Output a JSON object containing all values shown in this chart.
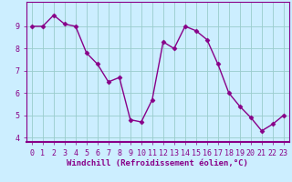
{
  "x": [
    0,
    1,
    2,
    3,
    4,
    5,
    6,
    7,
    8,
    9,
    10,
    11,
    12,
    13,
    14,
    15,
    16,
    17,
    18,
    19,
    20,
    21,
    22,
    23
  ],
  "y": [
    9.0,
    9.0,
    9.5,
    9.1,
    9.0,
    7.8,
    7.3,
    6.5,
    6.7,
    4.8,
    4.7,
    5.7,
    8.3,
    8.0,
    9.0,
    8.8,
    8.4,
    7.3,
    6.0,
    5.4,
    4.9,
    4.3,
    4.6,
    5.0
  ],
  "line_color": "#880088",
  "marker": "D",
  "marker_size": 2.5,
  "bg_color": "#cceeff",
  "grid_color": "#99cccc",
  "xlabel": "Windchill (Refroidissement éolien,°C)",
  "ylabel": "",
  "ylim": [
    3.8,
    10.1
  ],
  "xlim": [
    -0.5,
    23.5
  ],
  "yticks": [
    4,
    5,
    6,
    7,
    8,
    9
  ],
  "xticks": [
    0,
    1,
    2,
    3,
    4,
    5,
    6,
    7,
    8,
    9,
    10,
    11,
    12,
    13,
    14,
    15,
    16,
    17,
    18,
    19,
    20,
    21,
    22,
    23
  ],
  "xlabel_fontsize": 6.5,
  "tick_fontsize": 6.0,
  "line_width": 1.0,
  "spine_color": "#880088",
  "xlabel_color": "#880088"
}
